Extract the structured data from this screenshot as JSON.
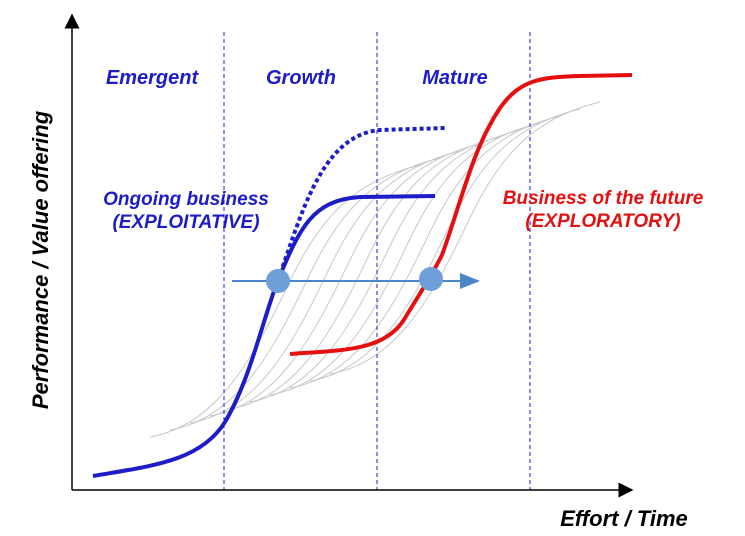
{
  "phases": [
    "Emergent",
    "Growth",
    "Mature"
  ],
  "ongoing": {
    "title": "Ongoing business",
    "subtitle": "(EXPLOITATIVE)"
  },
  "future": {
    "title": "Business of the future",
    "subtitle": "(EXPLORATORY)"
  },
  "axes": {
    "y_label": "Performance / Value offering",
    "x_label": "Effort / Time"
  }
}
